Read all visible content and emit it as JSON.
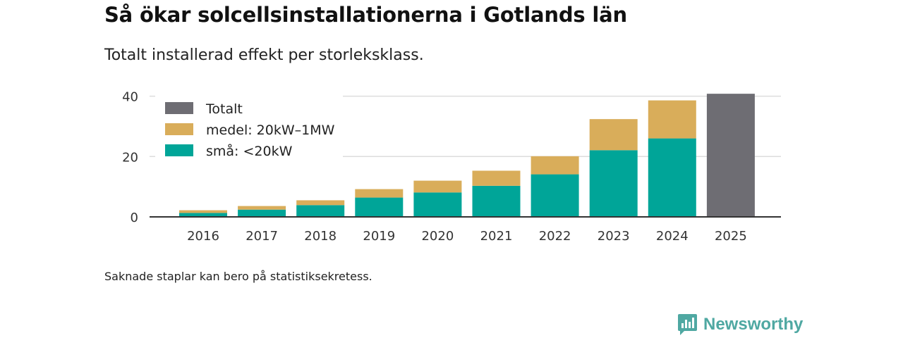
{
  "title": "Så ökar solcellsinstallationerna i Gotlands län",
  "subtitle": "Totalt installerad effekt per storleksklass.",
  "note": "Saknade staplar kan bero på statistiksekretess.",
  "brand": {
    "name": "Newsworthy",
    "color": "#4fa8a2"
  },
  "colors": {
    "small": "#00a598",
    "medium": "#d9ad5a",
    "total": "#6e6d73",
    "grid": "#dddddd",
    "axis": "#333333"
  },
  "chart_data": {
    "type": "bar",
    "stacked": true,
    "title": "Så ökar solcellsinstallationerna i Gotlands län",
    "subtitle": "Totalt installerad effekt per storleksklass.",
    "xlabel": "",
    "ylabel": "",
    "ylim": [
      0,
      42
    ],
    "yticks": [
      0,
      20,
      40
    ],
    "grid": true,
    "legend_position": "top-left",
    "categories": [
      "2016",
      "2017",
      "2018",
      "2019",
      "2020",
      "2021",
      "2022",
      "2023",
      "2024",
      "2025"
    ],
    "series": [
      {
        "name": "små: <20kW",
        "key": "small",
        "values": [
          1.3,
          2.4,
          3.9,
          6.4,
          8.1,
          10.3,
          14.1,
          22.1,
          26.0,
          null
        ]
      },
      {
        "name": "medel: 20kW–1MW",
        "key": "medium",
        "values": [
          0.9,
          1.2,
          1.6,
          2.8,
          3.9,
          5.0,
          6.0,
          10.3,
          12.6,
          null
        ]
      },
      {
        "name": "Totalt",
        "key": "total",
        "values": [
          null,
          null,
          null,
          null,
          null,
          null,
          null,
          null,
          null,
          40.8
        ]
      }
    ],
    "legend": [
      "Totalt",
      "medel: 20kW–1MW",
      "små: <20kW"
    ]
  }
}
